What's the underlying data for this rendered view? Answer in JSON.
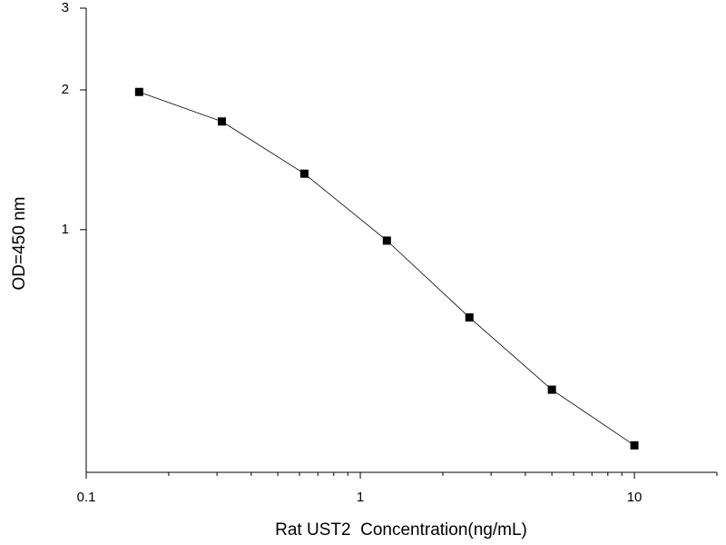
{
  "chart_data": {
    "type": "line",
    "x_label": "Rat UST2  Concentration(ng/mL)",
    "y_label": "OD=450 nm",
    "x": [
      0.156,
      0.3125,
      0.625,
      1.25,
      2.5,
      5,
      10
    ],
    "series": [
      {
        "color": "#000000",
        "values": [
          1.98,
          1.71,
          1.32,
          0.947,
          0.647,
          0.452,
          0.343
        ]
      }
    ],
    "x_log": true,
    "y_log": true,
    "xlim": [
      0.1,
      20
    ],
    "ylim": [
      0.3,
      3
    ],
    "xticks": [
      0.1,
      1,
      10
    ],
    "xminorticks": [
      0.2,
      0.3,
      0.4,
      0.5,
      0.6,
      0.7,
      0.8,
      0.9,
      2,
      3,
      4,
      5,
      6,
      7,
      8,
      9,
      20
    ],
    "yticks": [
      1,
      2,
      3
    ]
  }
}
